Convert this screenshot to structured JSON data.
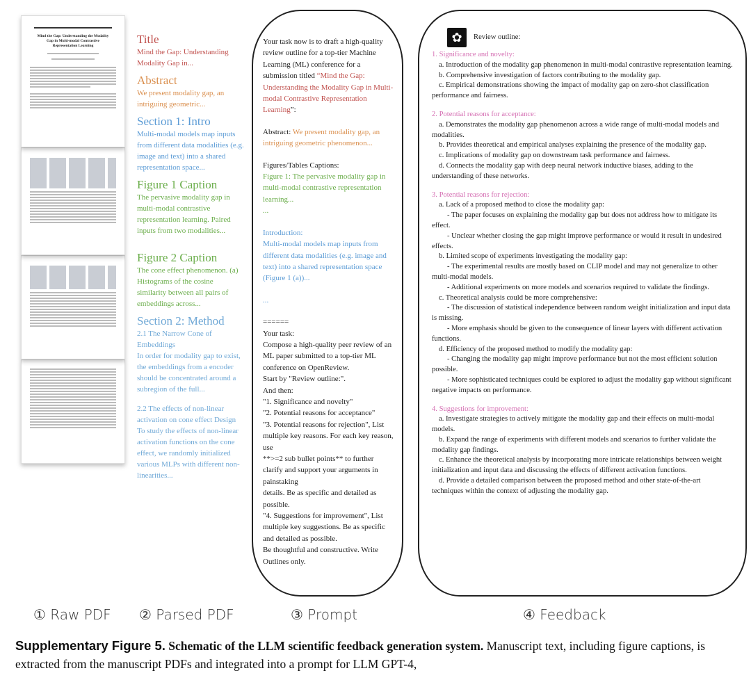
{
  "raw_pdf": {
    "paper_title": "Mind the Gap: Understanding the Modality Gap in Multi-modal Contrastive Representation Learning"
  },
  "parsed": {
    "title_head": "Title",
    "title_body": "Mind the Gap: Understanding Modality Gap in...",
    "abstract_head": "Abstract",
    "abstract_body": "We present modality gap, an intriguing geometric...",
    "intro_head": "Section 1: Intro",
    "intro_body": "Multi-modal models map inputs from different data modalities (e.g. image and text) into a shared representation space...",
    "fig1_head": "Figure 1 Caption",
    "fig1_body": "The pervasive modality gap in multi-modal contrastive representation learning. Paired inputs from two modalities...",
    "fig2_head": "Figure  2 Caption",
    "fig2_body": "The cone effect phenomenon. (a) Histograms of the cosine similarity between all pairs of embeddings across...",
    "method_head": "Section 2: Method",
    "method_body1": "2.1 The Narrow Cone of Embeddings\nIn order for modality gap to exist, the embeddings from a encoder should be concentrated around a subregion of the full...",
    "method_body2": "2.2 The effects of non-linear activation on cone effect Design To study the effects of non-linear activation functions on the cone effect, we randomly initialized various MLPs with different non-linearities..."
  },
  "prompt": {
    "intro": "Your task now is to draft a high-quality review outline for a top-tier Machine Learning (ML) conference for a submission titled ",
    "title": "“Mind the Gap: Understanding the Modality Gap in Multi-modal Contrastive Representation Learning",
    "title_end": "”:",
    "abstract_label": "Abstract: ",
    "abstract": "We present modality gap, an intriguing geometric phenomenon...",
    "captions_label": "Figures/Tables Captions:",
    "captions": "Figure 1: The pervasive modality gap in multi-modal contrastive representation learning...",
    "ellipsis": "...",
    "intro_label": "Introduction:",
    "intro_text": "Multi-modal models map inputs from different data modalities (e.g. image and text) into a shared representation space (Figure 1 (a))...",
    "task": "======\nYour task:\nCompose a high-quality peer review of an ML paper submitted to a top-tier ML conference on OpenReview.\nStart by \"Review outline:\".\nAnd then:\n\"1. Significance and novelty\"\n\"2. Potential reasons for acceptance\"\n\"3. Potential reasons for rejection\", List multiple key reasons. For each key reason, use\n**>=2 sub bullet points** to further clarify and support your arguments in painstaking\ndetails. Be as specific and detailed as possible.\n\"4. Suggestions for improvement\", List multiple key suggestions. Be as specific and detailed as possible.\nBe thoughtful and constructive. Write Outlines only."
  },
  "feedback": {
    "logo_icon": "openai-logo-icon",
    "header": "Review outline:",
    "sections": [
      {
        "heading": "1. Significance and novelty:",
        "items": [
          "a. Introduction of the modality gap phenomenon in multi-modal contrastive representation learning.",
          "b. Comprehensive investigation of factors contributing to the modality gap.",
          "c. Empirical demonstrations showing the impact of modality gap on zero-shot classification performance and fairness."
        ]
      },
      {
        "heading": "2. Potential reasons for acceptance:",
        "items": [
          "a. Demonstrates the modality gap phenomenon across a wide range of multi-modal models and modalities.",
          "b. Provides theoretical and empirical analyses explaining the presence of the modality gap.",
          "c. Implications of modality gap on downstream task performance and fairness.",
          "d. Connects the modality gap with deep neural network inductive biases, adding to the understanding of these networks."
        ]
      },
      {
        "heading": "3. Potential reasons for rejection:",
        "items": [
          "a. Lack of a proposed method to close the modality gap:",
          "    - The paper focuses on explaining the modality gap but does not address how to mitigate its effect.",
          "    - Unclear whether closing the gap might improve performance or would it result in undesired effects.",
          "b. Limited scope of experiments investigating the modality gap:",
          "    - The experimental results are mostly based on CLIP model and may not generalize to other multi-modal models.",
          "    - Additional experiments on more models and scenarios required to validate the findings.",
          "c. Theoretical analysis could be more comprehensive:",
          "    - The discussion of statistical independence between random weight initialization and input data is missing.",
          "    - More emphasis should be given to the consequence of linear layers with different activation functions.",
          "d. Efficiency of the proposed method to modify the modality gap:",
          "    - Changing the modality gap might improve performance but not the most efficient solution possible.",
          "    - More sophisticated techniques could be explored to adjust the modality gap without significant negative impacts on performance."
        ]
      },
      {
        "heading": "4. Suggestions for improvement:",
        "items": [
          "a. Investigate strategies to actively mitigate the modality gap and their effects on multi-modal models.",
          "b. Expand the range of experiments with different models and scenarios to further validate the modality gap findings.",
          "c. Enhance the theoretical analysis by incorporating more intricate relationships between weight initialization and input data and discussing the effects of different activation functions.",
          "d. Provide a detailed comparison between the proposed method and other state-of-the-art techniques within the context of adjusting the modality gap."
        ]
      }
    ]
  },
  "labels": {
    "raw": "① Raw PDF",
    "parsed": "② Parsed PDF",
    "prompt": "③ Prompt",
    "feedback": "④ Feedback"
  },
  "caption": {
    "label": "Supplementary Figure 5.",
    "bold": "Schematic of the LLM scientific feedback generation system.",
    "text": "Manuscript text, including figure captions, is extracted from the manuscript PDFs and integrated into a prompt for LLM GPT-4,"
  },
  "colors": {
    "title": "#c0504d",
    "abstract": "#da8f4e",
    "intro": "#5b9bd5",
    "figure": "#6aad4a",
    "heading": "#d56fb3"
  }
}
